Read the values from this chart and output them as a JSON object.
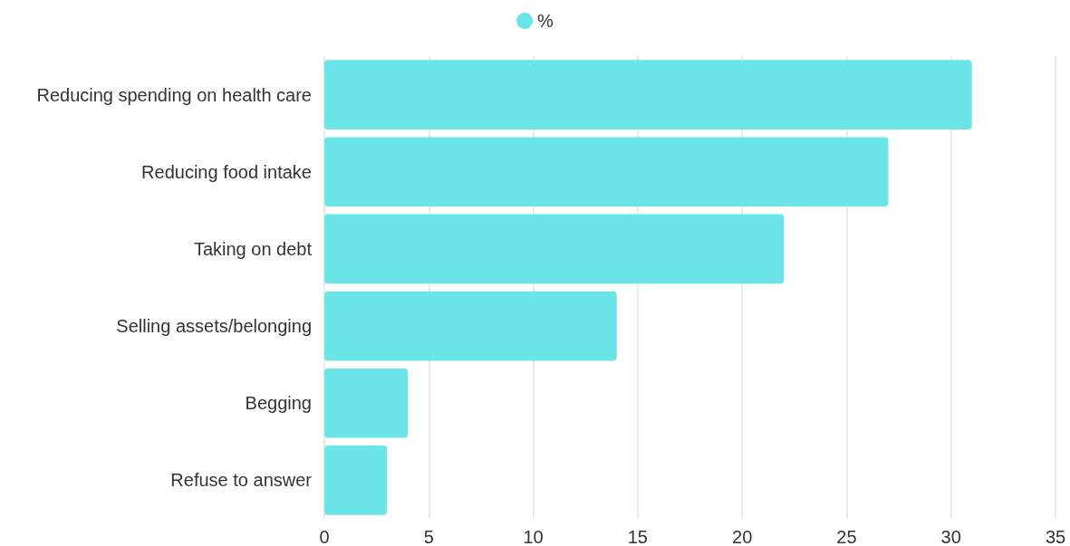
{
  "chart_data": {
    "type": "bar",
    "orientation": "horizontal",
    "categories": [
      "Reducing spending on health care",
      "Reducing food intake",
      "Taking on debt",
      "Selling assets/belonging",
      "Begging",
      "Refuse to answer"
    ],
    "series": [
      {
        "name": "%",
        "color": "#6ce5e8",
        "values": [
          31,
          27,
          22,
          14,
          4,
          3
        ]
      }
    ],
    "xlim": [
      0,
      35
    ],
    "xticks": [
      0,
      5,
      10,
      15,
      20,
      25,
      30,
      35
    ],
    "grid": "x",
    "legend": "top"
  }
}
